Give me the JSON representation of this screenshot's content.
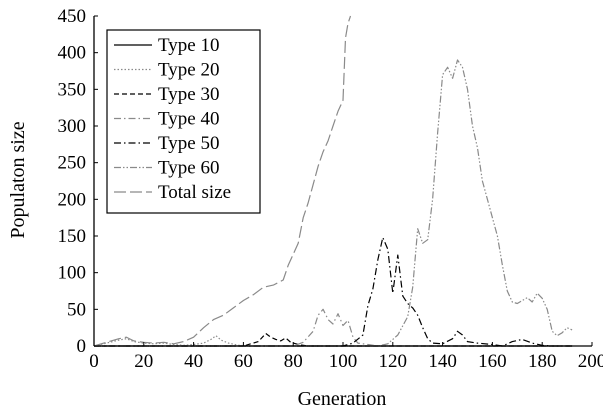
{
  "chart_data": {
    "type": "line",
    "title": "",
    "xlabel": "Generation",
    "ylabel": "Populaton size",
    "xlim": [
      0,
      200
    ],
    "ylim": [
      0,
      450
    ],
    "xticks": [
      "0",
      "20",
      "40",
      "60",
      "80",
      "100",
      "120",
      "140",
      "160",
      "180",
      "200"
    ],
    "yticks": [
      "0",
      "50",
      "100",
      "150",
      "200",
      "250",
      "300",
      "350",
      "400",
      "450"
    ],
    "grid": false,
    "legend_position": "top-left",
    "series": [
      {
        "name": "Type 10",
        "style": "solid",
        "color": "#000000",
        "points": [
          [
            0,
            0
          ],
          [
            40,
            0
          ],
          [
            80,
            0
          ],
          [
            120,
            0
          ],
          [
            160,
            0
          ],
          [
            192,
            0
          ]
        ]
      },
      {
        "name": "Type 20",
        "style": "dotted",
        "color": "#8a8a8a",
        "points": [
          [
            0,
            0
          ],
          [
            5,
            4
          ],
          [
            10,
            8
          ],
          [
            13,
            10
          ],
          [
            16,
            6
          ],
          [
            20,
            4
          ],
          [
            24,
            3
          ],
          [
            28,
            4
          ],
          [
            32,
            2
          ],
          [
            36,
            1
          ],
          [
            40,
            2
          ],
          [
            44,
            4
          ],
          [
            47,
            9
          ],
          [
            49,
            14
          ],
          [
            51,
            8
          ],
          [
            54,
            4
          ],
          [
            58,
            1
          ],
          [
            62,
            0
          ],
          [
            120,
            0
          ],
          [
            192,
            0
          ]
        ]
      },
      {
        "name": "Type 30",
        "style": "dashed",
        "color": "#000000",
        "points": [
          [
            0,
            0
          ],
          [
            60,
            0
          ],
          [
            66,
            6
          ],
          [
            69,
            17
          ],
          [
            71,
            12
          ],
          [
            73,
            9
          ],
          [
            75,
            7
          ],
          [
            77,
            11
          ],
          [
            79,
            5
          ],
          [
            82,
            2
          ],
          [
            86,
            0
          ],
          [
            108,
            0
          ],
          [
            192,
            0
          ]
        ]
      },
      {
        "name": "Type 40",
        "style": "dashdot",
        "color": "#8a8a8a",
        "points": [
          [
            0,
            0
          ],
          [
            80,
            0
          ],
          [
            84,
            5
          ],
          [
            88,
            20
          ],
          [
            90,
            42
          ],
          [
            92,
            50
          ],
          [
            94,
            36
          ],
          [
            96,
            30
          ],
          [
            98,
            44
          ],
          [
            100,
            28
          ],
          [
            102,
            35
          ],
          [
            104,
            12
          ],
          [
            106,
            4
          ],
          [
            110,
            2
          ],
          [
            114,
            0
          ],
          [
            192,
            0
          ]
        ]
      },
      {
        "name": "Type 50",
        "style": "dashdot",
        "color": "#000000",
        "points": [
          [
            0,
            0
          ],
          [
            100,
            0
          ],
          [
            104,
            4
          ],
          [
            108,
            15
          ],
          [
            110,
            55
          ],
          [
            112,
            78
          ],
          [
            114,
            118
          ],
          [
            116,
            148
          ],
          [
            118,
            132
          ],
          [
            120,
            72
          ],
          [
            122,
            124
          ],
          [
            124,
            68
          ],
          [
            126,
            58
          ],
          [
            128,
            52
          ],
          [
            130,
            42
          ],
          [
            132,
            25
          ],
          [
            134,
            10
          ],
          [
            136,
            4
          ],
          [
            140,
            3
          ],
          [
            144,
            10
          ],
          [
            146,
            20
          ],
          [
            148,
            15
          ],
          [
            150,
            6
          ],
          [
            154,
            4
          ],
          [
            160,
            2
          ],
          [
            164,
            0
          ],
          [
            168,
            6
          ],
          [
            172,
            9
          ],
          [
            176,
            4
          ],
          [
            180,
            1
          ],
          [
            184,
            0
          ],
          [
            192,
            0
          ]
        ]
      },
      {
        "name": "Type 60",
        "style": "dashdotdot",
        "color": "#8a8a8a",
        "points": [
          [
            0,
            0
          ],
          [
            114,
            0
          ],
          [
            118,
            3
          ],
          [
            122,
            15
          ],
          [
            126,
            40
          ],
          [
            128,
            80
          ],
          [
            130,
            160
          ],
          [
            132,
            140
          ],
          [
            134,
            145
          ],
          [
            136,
            200
          ],
          [
            138,
            290
          ],
          [
            140,
            370
          ],
          [
            142,
            380
          ],
          [
            144,
            365
          ],
          [
            146,
            390
          ],
          [
            148,
            380
          ],
          [
            150,
            350
          ],
          [
            152,
            300
          ],
          [
            154,
            270
          ],
          [
            156,
            225
          ],
          [
            158,
            200
          ],
          [
            160,
            175
          ],
          [
            162,
            150
          ],
          [
            164,
            110
          ],
          [
            166,
            75
          ],
          [
            168,
            60
          ],
          [
            170,
            58
          ],
          [
            172,
            62
          ],
          [
            174,
            66
          ],
          [
            176,
            60
          ],
          [
            178,
            72
          ],
          [
            180,
            65
          ],
          [
            182,
            50
          ],
          [
            184,
            20
          ],
          [
            186,
            14
          ],
          [
            188,
            18
          ],
          [
            190,
            25
          ],
          [
            192,
            22
          ]
        ]
      },
      {
        "name": "Total size",
        "style": "longdash",
        "color": "#8a8a8a",
        "points": [
          [
            0,
            0
          ],
          [
            5,
            5
          ],
          [
            10,
            10
          ],
          [
            13,
            12
          ],
          [
            16,
            7
          ],
          [
            20,
            5
          ],
          [
            24,
            4
          ],
          [
            28,
            5
          ],
          [
            32,
            3
          ],
          [
            36,
            6
          ],
          [
            40,
            12
          ],
          [
            44,
            25
          ],
          [
            48,
            36
          ],
          [
            52,
            42
          ],
          [
            56,
            52
          ],
          [
            60,
            62
          ],
          [
            64,
            70
          ],
          [
            68,
            80
          ],
          [
            72,
            83
          ],
          [
            76,
            90
          ],
          [
            78,
            110
          ],
          [
            80,
            125
          ],
          [
            82,
            140
          ],
          [
            84,
            175
          ],
          [
            86,
            195
          ],
          [
            88,
            220
          ],
          [
            90,
            245
          ],
          [
            92,
            265
          ],
          [
            94,
            280
          ],
          [
            96,
            300
          ],
          [
            98,
            320
          ],
          [
            100,
            335
          ],
          [
            101,
            420
          ],
          [
            102,
            440
          ],
          [
            103,
            450
          ]
        ]
      }
    ]
  }
}
